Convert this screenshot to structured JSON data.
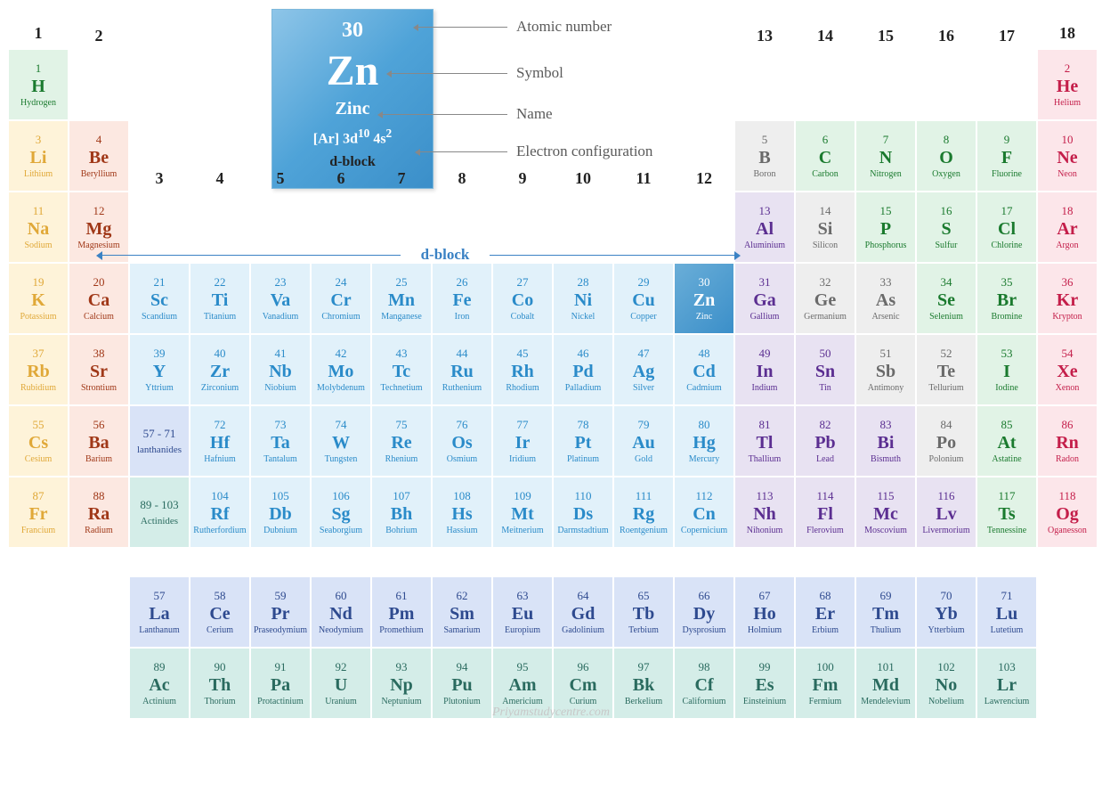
{
  "callout": {
    "atomic_number": "30",
    "symbol": "Zn",
    "name": "Zinc",
    "config_pre": "[Ar] 3d",
    "config_d": "10",
    "config_mid": " 4s",
    "config_s": "2",
    "block": "d-block",
    "labels": {
      "num": "Atomic number",
      "sym": "Symbol",
      "name": "Name",
      "conf": "Electron configuration"
    }
  },
  "dblock_label": "d-block",
  "watermark": "Priyamstudycentre.com",
  "groups": [
    "1",
    "2",
    "3",
    "4",
    "5",
    "6",
    "7",
    "8",
    "9",
    "10",
    "11",
    "12",
    "13",
    "14",
    "15",
    "16",
    "17",
    "18"
  ],
  "colors": {
    "c-alk": "#fef3d9",
    "c-aem": "#fce8e1",
    "c-tm": "#e1f1fa",
    "c-pt": "#e8e2f2",
    "c-mtl": "#eeeeee",
    "c-nm": "#e1f3e6",
    "c-hal": "#e1f3e6",
    "c-ng": "#fce6ea",
    "c-lan": "#d9e3f7",
    "c-act": "#d4ede8"
  },
  "elements": [
    {
      "z": 1,
      "sym": "H",
      "nm": "Hydrogen",
      "col": 1,
      "row": 1,
      "cat": "c-nm"
    },
    {
      "z": 2,
      "sym": "He",
      "nm": "Helium",
      "col": 18,
      "row": 1,
      "cat": "c-ng"
    },
    {
      "z": 3,
      "sym": "Li",
      "nm": "Lithium",
      "col": 1,
      "row": 2,
      "cat": "c-alk"
    },
    {
      "z": 4,
      "sym": "Be",
      "nm": "Beryllium",
      "col": 2,
      "row": 2,
      "cat": "c-aem"
    },
    {
      "z": 5,
      "sym": "B",
      "nm": "Boron",
      "col": 13,
      "row": 2,
      "cat": "c-mtl"
    },
    {
      "z": 6,
      "sym": "C",
      "nm": "Carbon",
      "col": 14,
      "row": 2,
      "cat": "c-nm"
    },
    {
      "z": 7,
      "sym": "N",
      "nm": "Nitrogen",
      "col": 15,
      "row": 2,
      "cat": "c-nm"
    },
    {
      "z": 8,
      "sym": "O",
      "nm": "Oxygen",
      "col": 16,
      "row": 2,
      "cat": "c-nm"
    },
    {
      "z": 9,
      "sym": "F",
      "nm": "Fluorine",
      "col": 17,
      "row": 2,
      "cat": "c-hal"
    },
    {
      "z": 10,
      "sym": "Ne",
      "nm": "Neon",
      "col": 18,
      "row": 2,
      "cat": "c-ng"
    },
    {
      "z": 11,
      "sym": "Na",
      "nm": "Sodium",
      "col": 1,
      "row": 3,
      "cat": "c-alk"
    },
    {
      "z": 12,
      "sym": "Mg",
      "nm": "Magnesium",
      "col": 2,
      "row": 3,
      "cat": "c-aem"
    },
    {
      "z": 13,
      "sym": "Al",
      "nm": "Aluminium",
      "col": 13,
      "row": 3,
      "cat": "c-pt"
    },
    {
      "z": 14,
      "sym": "Si",
      "nm": "Silicon",
      "col": 14,
      "row": 3,
      "cat": "c-mtl"
    },
    {
      "z": 15,
      "sym": "P",
      "nm": "Phosphorus",
      "col": 15,
      "row": 3,
      "cat": "c-nm"
    },
    {
      "z": 16,
      "sym": "S",
      "nm": "Sulfur",
      "col": 16,
      "row": 3,
      "cat": "c-nm"
    },
    {
      "z": 17,
      "sym": "Cl",
      "nm": "Chlorine",
      "col": 17,
      "row": 3,
      "cat": "c-hal"
    },
    {
      "z": 18,
      "sym": "Ar",
      "nm": "Argon",
      "col": 18,
      "row": 3,
      "cat": "c-ng"
    },
    {
      "z": 19,
      "sym": "K",
      "nm": "Potassium",
      "col": 1,
      "row": 4,
      "cat": "c-alk"
    },
    {
      "z": 20,
      "sym": "Ca",
      "nm": "Calcium",
      "col": 2,
      "row": 4,
      "cat": "c-aem"
    },
    {
      "z": 21,
      "sym": "Sc",
      "nm": "Scandium",
      "col": 3,
      "row": 4,
      "cat": "c-tm"
    },
    {
      "z": 22,
      "sym": "Ti",
      "nm": "Titanium",
      "col": 4,
      "row": 4,
      "cat": "c-tm"
    },
    {
      "z": 23,
      "sym": "Va",
      "nm": "Vanadium",
      "col": 5,
      "row": 4,
      "cat": "c-tm"
    },
    {
      "z": 24,
      "sym": "Cr",
      "nm": "Chromium",
      "col": 6,
      "row": 4,
      "cat": "c-tm"
    },
    {
      "z": 25,
      "sym": "Mn",
      "nm": "Manganese",
      "col": 7,
      "row": 4,
      "cat": "c-tm"
    },
    {
      "z": 26,
      "sym": "Fe",
      "nm": "Iron",
      "col": 8,
      "row": 4,
      "cat": "c-tm"
    },
    {
      "z": 27,
      "sym": "Co",
      "nm": "Cobalt",
      "col": 9,
      "row": 4,
      "cat": "c-tm"
    },
    {
      "z": 28,
      "sym": "Ni",
      "nm": "Nickel",
      "col": 10,
      "row": 4,
      "cat": "c-tm"
    },
    {
      "z": 29,
      "sym": "Cu",
      "nm": "Copper",
      "col": 11,
      "row": 4,
      "cat": "c-tm"
    },
    {
      "z": 30,
      "sym": "Zn",
      "nm": "Zinc",
      "col": 12,
      "row": 4,
      "cat": "c-tm",
      "hl": true
    },
    {
      "z": 31,
      "sym": "Ga",
      "nm": "Gallium",
      "col": 13,
      "row": 4,
      "cat": "c-pt"
    },
    {
      "z": 32,
      "sym": "Ge",
      "nm": "Germanium",
      "col": 14,
      "row": 4,
      "cat": "c-mtl"
    },
    {
      "z": 33,
      "sym": "As",
      "nm": "Arsenic",
      "col": 15,
      "row": 4,
      "cat": "c-mtl"
    },
    {
      "z": 34,
      "sym": "Se",
      "nm": "Selenium",
      "col": 16,
      "row": 4,
      "cat": "c-nm"
    },
    {
      "z": 35,
      "sym": "Br",
      "nm": "Bromine",
      "col": 17,
      "row": 4,
      "cat": "c-hal"
    },
    {
      "z": 36,
      "sym": "Kr",
      "nm": "Krypton",
      "col": 18,
      "row": 4,
      "cat": "c-ng"
    },
    {
      "z": 37,
      "sym": "Rb",
      "nm": "Rubidium",
      "col": 1,
      "row": 5,
      "cat": "c-alk"
    },
    {
      "z": 38,
      "sym": "Sr",
      "nm": "Strontium",
      "col": 2,
      "row": 5,
      "cat": "c-aem"
    },
    {
      "z": 39,
      "sym": "Y",
      "nm": "Yttrium",
      "col": 3,
      "row": 5,
      "cat": "c-tm"
    },
    {
      "z": 40,
      "sym": "Zr",
      "nm": "Zirconium",
      "col": 4,
      "row": 5,
      "cat": "c-tm"
    },
    {
      "z": 41,
      "sym": "Nb",
      "nm": "Niobium",
      "col": 5,
      "row": 5,
      "cat": "c-tm"
    },
    {
      "z": 42,
      "sym": "Mo",
      "nm": "Molybdenum",
      "col": 6,
      "row": 5,
      "cat": "c-tm"
    },
    {
      "z": 43,
      "sym": "Tc",
      "nm": "Technetium",
      "col": 7,
      "row": 5,
      "cat": "c-tm"
    },
    {
      "z": 44,
      "sym": "Ru",
      "nm": "Ruthenium",
      "col": 8,
      "row": 5,
      "cat": "c-tm"
    },
    {
      "z": 45,
      "sym": "Rh",
      "nm": "Rhodium",
      "col": 9,
      "row": 5,
      "cat": "c-tm"
    },
    {
      "z": 46,
      "sym": "Pd",
      "nm": "Palladium",
      "col": 10,
      "row": 5,
      "cat": "c-tm"
    },
    {
      "z": 47,
      "sym": "Ag",
      "nm": "Silver",
      "col": 11,
      "row": 5,
      "cat": "c-tm"
    },
    {
      "z": 48,
      "sym": "Cd",
      "nm": "Cadmium",
      "col": 12,
      "row": 5,
      "cat": "c-tm"
    },
    {
      "z": 49,
      "sym": "In",
      "nm": "Indium",
      "col": 13,
      "row": 5,
      "cat": "c-pt"
    },
    {
      "z": 50,
      "sym": "Sn",
      "nm": "Tin",
      "col": 14,
      "row": 5,
      "cat": "c-pt"
    },
    {
      "z": 51,
      "sym": "Sb",
      "nm": "Antimony",
      "col": 15,
      "row": 5,
      "cat": "c-mtl"
    },
    {
      "z": 52,
      "sym": "Te",
      "nm": "Tellurium",
      "col": 16,
      "row": 5,
      "cat": "c-mtl"
    },
    {
      "z": 53,
      "sym": "I",
      "nm": "Iodine",
      "col": 17,
      "row": 5,
      "cat": "c-hal"
    },
    {
      "z": 54,
      "sym": "Xe",
      "nm": "Xenon",
      "col": 18,
      "row": 5,
      "cat": "c-ng"
    },
    {
      "z": 55,
      "sym": "Cs",
      "nm": "Cesium",
      "col": 1,
      "row": 6,
      "cat": "c-alk"
    },
    {
      "z": 56,
      "sym": "Ba",
      "nm": "Barium",
      "col": 2,
      "row": 6,
      "cat": "c-aem"
    },
    {
      "z": 72,
      "sym": "Hf",
      "nm": "Hafnium",
      "col": 4,
      "row": 6,
      "cat": "c-tm"
    },
    {
      "z": 73,
      "sym": "Ta",
      "nm": "Tantalum",
      "col": 5,
      "row": 6,
      "cat": "c-tm"
    },
    {
      "z": 74,
      "sym": "W",
      "nm": "Tungsten",
      "col": 6,
      "row": 6,
      "cat": "c-tm"
    },
    {
      "z": 75,
      "sym": "Re",
      "nm": "Rhenium",
      "col": 7,
      "row": 6,
      "cat": "c-tm"
    },
    {
      "z": 76,
      "sym": "Os",
      "nm": "Osmium",
      "col": 8,
      "row": 6,
      "cat": "c-tm"
    },
    {
      "z": 77,
      "sym": "Ir",
      "nm": "Iridium",
      "col": 9,
      "row": 6,
      "cat": "c-tm"
    },
    {
      "z": 78,
      "sym": "Pt",
      "nm": "Platinum",
      "col": 10,
      "row": 6,
      "cat": "c-tm"
    },
    {
      "z": 79,
      "sym": "Au",
      "nm": "Gold",
      "col": 11,
      "row": 6,
      "cat": "c-tm"
    },
    {
      "z": 80,
      "sym": "Hg",
      "nm": "Mercury",
      "col": 12,
      "row": 6,
      "cat": "c-tm"
    },
    {
      "z": 81,
      "sym": "Tl",
      "nm": "Thallium",
      "col": 13,
      "row": 6,
      "cat": "c-pt"
    },
    {
      "z": 82,
      "sym": "Pb",
      "nm": "Lead",
      "col": 14,
      "row": 6,
      "cat": "c-pt"
    },
    {
      "z": 83,
      "sym": "Bi",
      "nm": "Bismuth",
      "col": 15,
      "row": 6,
      "cat": "c-pt"
    },
    {
      "z": 84,
      "sym": "Po",
      "nm": "Polonium",
      "col": 16,
      "row": 6,
      "cat": "c-mtl"
    },
    {
      "z": 85,
      "sym": "At",
      "nm": "Astatine",
      "col": 17,
      "row": 6,
      "cat": "c-hal"
    },
    {
      "z": 86,
      "sym": "Rn",
      "nm": "Radon",
      "col": 18,
      "row": 6,
      "cat": "c-ng"
    },
    {
      "z": 87,
      "sym": "Fr",
      "nm": "Francium",
      "col": 1,
      "row": 7,
      "cat": "c-alk"
    },
    {
      "z": 88,
      "sym": "Ra",
      "nm": "Radium",
      "col": 2,
      "row": 7,
      "cat": "c-aem"
    },
    {
      "z": 104,
      "sym": "Rf",
      "nm": "Rutherfordium",
      "col": 4,
      "row": 7,
      "cat": "c-tm"
    },
    {
      "z": 105,
      "sym": "Db",
      "nm": "Dubnium",
      "col": 5,
      "row": 7,
      "cat": "c-tm"
    },
    {
      "z": 106,
      "sym": "Sg",
      "nm": "Seaborgium",
      "col": 6,
      "row": 7,
      "cat": "c-tm"
    },
    {
      "z": 107,
      "sym": "Bh",
      "nm": "Bohrium",
      "col": 7,
      "row": 7,
      "cat": "c-tm"
    },
    {
      "z": 108,
      "sym": "Hs",
      "nm": "Hassium",
      "col": 8,
      "row": 7,
      "cat": "c-tm"
    },
    {
      "z": 109,
      "sym": "Mt",
      "nm": "Meitnerium",
      "col": 9,
      "row": 7,
      "cat": "c-tm"
    },
    {
      "z": 110,
      "sym": "Ds",
      "nm": "Darmstadtium",
      "col": 10,
      "row": 7,
      "cat": "c-tm"
    },
    {
      "z": 111,
      "sym": "Rg",
      "nm": "Roentgenium",
      "col": 11,
      "row": 7,
      "cat": "c-tm"
    },
    {
      "z": 112,
      "sym": "Cn",
      "nm": "Copernicium",
      "col": 12,
      "row": 7,
      "cat": "c-tm"
    },
    {
      "z": 113,
      "sym": "Nh",
      "nm": "Nihonium",
      "col": 13,
      "row": 7,
      "cat": "c-pt"
    },
    {
      "z": 114,
      "sym": "Fl",
      "nm": "Flerovium",
      "col": 14,
      "row": 7,
      "cat": "c-pt"
    },
    {
      "z": 115,
      "sym": "Mc",
      "nm": "Moscovium",
      "col": 15,
      "row": 7,
      "cat": "c-pt"
    },
    {
      "z": 116,
      "sym": "Lv",
      "nm": "Livermorium",
      "col": 16,
      "row": 7,
      "cat": "c-pt"
    },
    {
      "z": 117,
      "sym": "Ts",
      "nm": "Tennessine",
      "col": 17,
      "row": 7,
      "cat": "c-hal"
    },
    {
      "z": 118,
      "sym": "Og",
      "nm": "Oganesson",
      "col": 18,
      "row": 7,
      "cat": "c-ng"
    },
    {
      "z": 57,
      "sym": "La",
      "nm": "Lanthanum",
      "col": 3,
      "row": 9,
      "cat": "c-lan"
    },
    {
      "z": 58,
      "sym": "Ce",
      "nm": "Cerium",
      "col": 4,
      "row": 9,
      "cat": "c-lan"
    },
    {
      "z": 59,
      "sym": "Pr",
      "nm": "Praseodymium",
      "col": 5,
      "row": 9,
      "cat": "c-lan"
    },
    {
      "z": 60,
      "sym": "Nd",
      "nm": "Neodymium",
      "col": 6,
      "row": 9,
      "cat": "c-lan"
    },
    {
      "z": 61,
      "sym": "Pm",
      "nm": "Promethium",
      "col": 7,
      "row": 9,
      "cat": "c-lan"
    },
    {
      "z": 62,
      "sym": "Sm",
      "nm": "Samarium",
      "col": 8,
      "row": 9,
      "cat": "c-lan"
    },
    {
      "z": 63,
      "sym": "Eu",
      "nm": "Europium",
      "col": 9,
      "row": 9,
      "cat": "c-lan"
    },
    {
      "z": 64,
      "sym": "Gd",
      "nm": "Gadolinium",
      "col": 10,
      "row": 9,
      "cat": "c-lan"
    },
    {
      "z": 65,
      "sym": "Tb",
      "nm": "Terbium",
      "col": 11,
      "row": 9,
      "cat": "c-lan"
    },
    {
      "z": 66,
      "sym": "Dy",
      "nm": "Dysprosium",
      "col": 12,
      "row": 9,
      "cat": "c-lan"
    },
    {
      "z": 67,
      "sym": "Ho",
      "nm": "Holmium",
      "col": 13,
      "row": 9,
      "cat": "c-lan"
    },
    {
      "z": 68,
      "sym": "Er",
      "nm": "Erbium",
      "col": 14,
      "row": 9,
      "cat": "c-lan"
    },
    {
      "z": 69,
      "sym": "Tm",
      "nm": "Thulium",
      "col": 15,
      "row": 9,
      "cat": "c-lan"
    },
    {
      "z": 70,
      "sym": "Yb",
      "nm": "Ytterbium",
      "col": 16,
      "row": 9,
      "cat": "c-lan"
    },
    {
      "z": 71,
      "sym": "Lu",
      "nm": "Lutetium",
      "col": 17,
      "row": 9,
      "cat": "c-lan"
    },
    {
      "z": 89,
      "sym": "Ac",
      "nm": "Actinium",
      "col": 3,
      "row": 10,
      "cat": "c-act"
    },
    {
      "z": 90,
      "sym": "Th",
      "nm": "Thorium",
      "col": 4,
      "row": 10,
      "cat": "c-act"
    },
    {
      "z": 91,
      "sym": "Pa",
      "nm": "Protactinium",
      "col": 5,
      "row": 10,
      "cat": "c-act"
    },
    {
      "z": 92,
      "sym": "U",
      "nm": "Uranium",
      "col": 6,
      "row": 10,
      "cat": "c-act"
    },
    {
      "z": 93,
      "sym": "Np",
      "nm": "Neptunium",
      "col": 7,
      "row": 10,
      "cat": "c-act"
    },
    {
      "z": 94,
      "sym": "Pu",
      "nm": "Plutonium",
      "col": 8,
      "row": 10,
      "cat": "c-act"
    },
    {
      "z": 95,
      "sym": "Am",
      "nm": "Americium",
      "col": 9,
      "row": 10,
      "cat": "c-act"
    },
    {
      "z": 96,
      "sym": "Cm",
      "nm": "Curium",
      "col": 10,
      "row": 10,
      "cat": "c-act"
    },
    {
      "z": 97,
      "sym": "Bk",
      "nm": "Berkelium",
      "col": 11,
      "row": 10,
      "cat": "c-act"
    },
    {
      "z": 98,
      "sym": "Cf",
      "nm": "Californium",
      "col": 12,
      "row": 10,
      "cat": "c-act"
    },
    {
      "z": 99,
      "sym": "Es",
      "nm": "Einsteinium",
      "col": 13,
      "row": 10,
      "cat": "c-act"
    },
    {
      "z": 100,
      "sym": "Fm",
      "nm": "Fermium",
      "col": 14,
      "row": 10,
      "cat": "c-act"
    },
    {
      "z": 101,
      "sym": "Md",
      "nm": "Mendelevium",
      "col": 15,
      "row": 10,
      "cat": "c-act"
    },
    {
      "z": 102,
      "sym": "No",
      "nm": "Nobelium",
      "col": 16,
      "row": 10,
      "cat": "c-act"
    },
    {
      "z": 103,
      "sym": "Lr",
      "nm": "Lawrencium",
      "col": 17,
      "row": 10,
      "cat": "c-act"
    }
  ],
  "placeholders": {
    "lan": {
      "range": "57 - 71",
      "label": "lanthanides",
      "col": 3,
      "row": 6,
      "cat": "c-lanp"
    },
    "act": {
      "range": "89 - 103",
      "label": "Actinides",
      "col": 3,
      "row": 7,
      "cat": "c-actp"
    }
  },
  "group_header_rows": {
    "1": {
      "row": 1,
      "cols": [
        1,
        18
      ]
    },
    "2": {
      "row": 2,
      "cols": [
        2,
        13,
        14,
        15,
        16,
        17
      ]
    },
    "4": {
      "row": 4,
      "cols": [
        3,
        4,
        5,
        6,
        7,
        8,
        9,
        10,
        11,
        12
      ]
    }
  }
}
